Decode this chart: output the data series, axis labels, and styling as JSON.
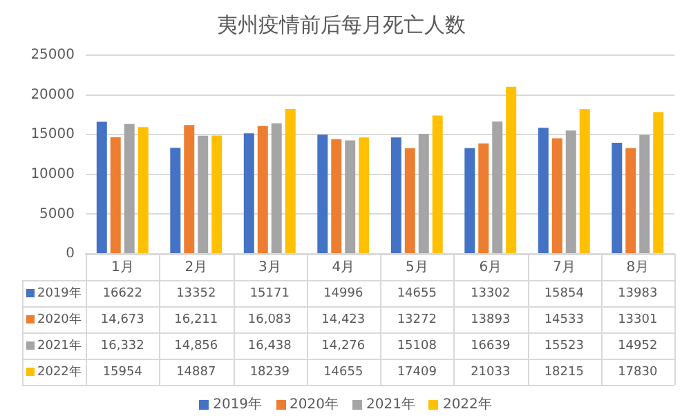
{
  "chart_data": {
    "type": "bar",
    "title": "夷州疫情前后每月死亡人数",
    "categories": [
      "1月",
      "2月",
      "3月",
      "4月",
      "5月",
      "6月",
      "7月",
      "8月"
    ],
    "series": [
      {
        "name": "2019年",
        "color": "#4472c4",
        "values": [
          16622,
          13352,
          15171,
          14996,
          14655,
          13302,
          15854,
          13983
        ],
        "value_labels": [
          "16622",
          "13352",
          "15171",
          "14996",
          "14655",
          "13302",
          "15854",
          "13983"
        ]
      },
      {
        "name": "2020年",
        "color": "#ed7d31",
        "values": [
          14673,
          16211,
          16083,
          14423,
          13272,
          13893,
          14533,
          13301
        ],
        "value_labels": [
          "14,673",
          "16,211",
          "16,083",
          "14,423",
          "13272",
          "13893",
          "14533",
          "13301"
        ]
      },
      {
        "name": "2021年",
        "color": "#a5a5a5",
        "values": [
          16332,
          14856,
          16438,
          14276,
          15108,
          16639,
          15523,
          14952
        ],
        "value_labels": [
          "16,332",
          "14,856",
          "16,438",
          "14,276",
          "15108",
          "16639",
          "15523",
          "14952"
        ]
      },
      {
        "name": "2022年",
        "color": "#ffc000",
        "values": [
          15954,
          14887,
          18239,
          14655,
          17409,
          21033,
          18215,
          17830
        ],
        "value_labels": [
          "15954",
          "14887",
          "18239",
          "14655",
          "17409",
          "21033",
          "18215",
          "17830"
        ]
      }
    ],
    "ylim": [
      0,
      25000
    ],
    "yticks": [
      0,
      5000,
      10000,
      15000,
      20000,
      25000
    ],
    "grid": "y",
    "legend": "bottom"
  }
}
